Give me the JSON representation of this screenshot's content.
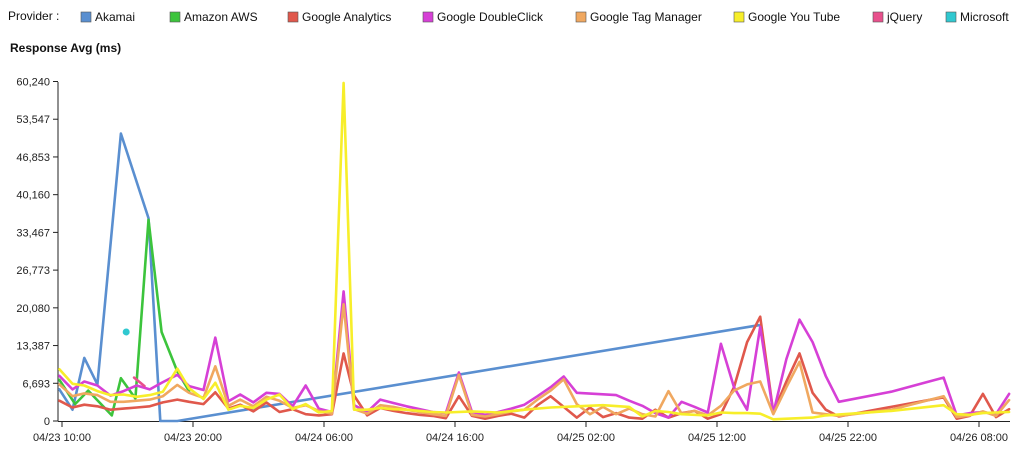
{
  "legend": {
    "prefix": "Provider :"
  },
  "chart_data": {
    "type": "line",
    "title": "",
    "xlabel": "",
    "ylabel": "Response Avg (ms)",
    "ylim": [
      0,
      62000
    ],
    "y_ticks": [
      0,
      6693,
      13387,
      20080,
      26773,
      33467,
      40160,
      46853,
      53547,
      60240
    ],
    "y_tick_labels": [
      "0",
      "6,693",
      "13,387",
      "20,080",
      "26,773",
      "33,467",
      "40,160",
      "46,853",
      "53,547",
      "60,240"
    ],
    "x_unit": "hours since 04/23 10:00",
    "xlim": [
      0,
      74.5
    ],
    "x_ticks": [
      0,
      10,
      20,
      30,
      40,
      50,
      60,
      70
    ],
    "x_tick_labels": [
      "04/23 10:00",
      "04/23 20:00",
      "04/24 06:00",
      "04/24 16:00",
      "04/25 02:00",
      "04/25 12:00",
      "04/25 22:00",
      "04/26 08:00"
    ],
    "grid": false,
    "legend_position": "top",
    "series": [
      {
        "name": "Akamai",
        "color": "#5a8fd0",
        "points": [
          [
            -0.2,
            5600
          ],
          [
            0.8,
            2000
          ],
          [
            1.7,
            11200
          ],
          [
            2.7,
            6500
          ],
          [
            4.5,
            51000
          ],
          [
            6.6,
            36000
          ],
          [
            7.5,
            0
          ],
          [
            8.8,
            0
          ],
          [
            53.2,
            17000
          ]
        ]
      },
      {
        "name": "Amazon AWS",
        "color": "#3cc43c",
        "points": [
          [
            -0.2,
            7300
          ],
          [
            1.0,
            3000
          ],
          [
            2.0,
            5400
          ],
          [
            3.8,
            1000
          ],
          [
            4.5,
            7600
          ],
          [
            5.6,
            4000
          ],
          [
            6.6,
            35700
          ],
          [
            7.6,
            15800
          ],
          [
            8.8,
            8800
          ],
          [
            9.7,
            5300
          ]
        ]
      },
      {
        "name": "Google Analytics",
        "color": "#e0584c",
        "points": [
          [
            -0.2,
            3600
          ],
          [
            0.8,
            2400
          ],
          [
            1.7,
            2900
          ],
          [
            2.7,
            2600
          ],
          [
            3.7,
            2000
          ],
          [
            4.7,
            2200
          ],
          [
            5.7,
            2400
          ],
          [
            6.7,
            2600
          ],
          [
            7.7,
            3300
          ],
          [
            8.8,
            3800
          ],
          [
            9.7,
            3400
          ],
          [
            10.8,
            3000
          ],
          [
            11.7,
            5100
          ],
          [
            12.7,
            2200
          ],
          [
            13.6,
            2900
          ],
          [
            14.6,
            1700
          ],
          [
            15.6,
            3300
          ],
          [
            16.6,
            1600
          ],
          [
            17.6,
            2100
          ],
          [
            18.6,
            1200
          ],
          [
            19.6,
            1000
          ],
          [
            20.6,
            1200
          ],
          [
            21.5,
            12000
          ],
          [
            22.3,
            4500
          ],
          [
            23.3,
            1000
          ],
          [
            24.3,
            2300
          ],
          [
            25.3,
            1800
          ],
          [
            26.3,
            1400
          ],
          [
            27.3,
            1100
          ],
          [
            28.3,
            900
          ],
          [
            29.3,
            500
          ],
          [
            30.3,
            4400
          ],
          [
            31.3,
            900
          ],
          [
            32.3,
            400
          ],
          [
            33.3,
            900
          ],
          [
            34.3,
            1300
          ],
          [
            35.3,
            600
          ],
          [
            36.3,
            2800
          ],
          [
            37.3,
            4400
          ],
          [
            38.3,
            2500
          ],
          [
            39.3,
            600
          ],
          [
            40.3,
            2400
          ],
          [
            41.3,
            700
          ],
          [
            42.3,
            1400
          ],
          [
            43.3,
            600
          ],
          [
            44.3,
            400
          ],
          [
            45.3,
            2000
          ],
          [
            46.3,
            600
          ],
          [
            47.3,
            1400
          ],
          [
            48.3,
            1800
          ],
          [
            49.3,
            400
          ],
          [
            50.3,
            1200
          ],
          [
            51.3,
            6000
          ],
          [
            52.3,
            14000
          ],
          [
            53.3,
            18500
          ],
          [
            54.3,
            1500
          ],
          [
            55.3,
            7000
          ],
          [
            56.3,
            12000
          ],
          [
            57.3,
            5000
          ],
          [
            58.3,
            2000
          ],
          [
            59.3,
            800
          ],
          [
            63.3,
            2500
          ],
          [
            67.3,
            4200
          ],
          [
            68.3,
            400
          ],
          [
            69.3,
            900
          ],
          [
            70.3,
            4800
          ],
          [
            71.3,
            700
          ],
          [
            72.3,
            2100
          ]
        ]
      },
      {
        "name": "Google DoubleClick",
        "color": "#d640d6",
        "points": [
          [
            -0.2,
            8000
          ],
          [
            0.8,
            5600
          ],
          [
            1.7,
            7000
          ],
          [
            2.7,
            6300
          ],
          [
            3.7,
            4500
          ],
          [
            4.7,
            5300
          ],
          [
            5.7,
            6300
          ],
          [
            6.7,
            5600
          ],
          [
            7.7,
            6900
          ],
          [
            8.8,
            8200
          ],
          [
            9.7,
            6200
          ],
          [
            10.8,
            5500
          ],
          [
            11.7,
            14800
          ],
          [
            12.7,
            3500
          ],
          [
            13.6,
            4700
          ],
          [
            14.6,
            3300
          ],
          [
            15.6,
            5000
          ],
          [
            16.6,
            4800
          ],
          [
            17.6,
            2600
          ],
          [
            18.6,
            6300
          ],
          [
            19.6,
            2200
          ],
          [
            20.6,
            1600
          ],
          [
            21.5,
            23000
          ],
          [
            22.3,
            2800
          ],
          [
            23.3,
            1600
          ],
          [
            24.3,
            3800
          ],
          [
            25.3,
            3200
          ],
          [
            26.3,
            2600
          ],
          [
            27.3,
            2100
          ],
          [
            28.3,
            1600
          ],
          [
            29.3,
            1400
          ],
          [
            30.3,
            8600
          ],
          [
            31.3,
            1600
          ],
          [
            32.3,
            1100
          ],
          [
            33.3,
            1600
          ],
          [
            34.3,
            2200
          ],
          [
            35.3,
            2900
          ],
          [
            36.3,
            4400
          ],
          [
            37.3,
            6000
          ],
          [
            38.3,
            7900
          ],
          [
            39.3,
            5000
          ],
          [
            42.3,
            4600
          ],
          [
            43.3,
            3600
          ],
          [
            44.3,
            2700
          ],
          [
            45.3,
            1400
          ],
          [
            46.3,
            600
          ],
          [
            47.3,
            3400
          ],
          [
            48.3,
            2500
          ],
          [
            49.3,
            1500
          ],
          [
            50.3,
            13700
          ],
          [
            51.3,
            6000
          ],
          [
            52.3,
            2000
          ],
          [
            53.3,
            16700
          ],
          [
            54.3,
            1400
          ],
          [
            55.3,
            11000
          ],
          [
            56.3,
            18000
          ],
          [
            57.3,
            14000
          ],
          [
            58.3,
            8000
          ],
          [
            59.3,
            3400
          ],
          [
            63.3,
            5200
          ],
          [
            67.3,
            7700
          ],
          [
            68.3,
            1000
          ],
          [
            69.3,
            1400
          ],
          [
            70.3,
            1600
          ],
          [
            71.3,
            1200
          ],
          [
            72.3,
            4800
          ]
        ]
      },
      {
        "name": "Google Tag Manager",
        "color": "#f0a860",
        "points": [
          [
            -0.2,
            6500
          ],
          [
            0.8,
            4400
          ],
          [
            1.7,
            4900
          ],
          [
            2.7,
            4600
          ],
          [
            3.7,
            3400
          ],
          [
            4.7,
            3400
          ],
          [
            5.7,
            3600
          ],
          [
            6.7,
            3800
          ],
          [
            7.7,
            4400
          ],
          [
            8.8,
            6400
          ],
          [
            9.7,
            5000
          ],
          [
            10.8,
            4100
          ],
          [
            11.7,
            9700
          ],
          [
            12.7,
            2700
          ],
          [
            13.6,
            3800
          ],
          [
            14.6,
            2600
          ],
          [
            15.6,
            4300
          ],
          [
            16.6,
            3600
          ],
          [
            17.6,
            2300
          ],
          [
            18.6,
            2800
          ],
          [
            19.6,
            1800
          ],
          [
            20.6,
            1300
          ],
          [
            21.5,
            20700
          ],
          [
            22.3,
            2100
          ],
          [
            23.3,
            1300
          ],
          [
            24.3,
            2800
          ],
          [
            25.3,
            2500
          ],
          [
            26.3,
            2000
          ],
          [
            27.3,
            1600
          ],
          [
            28.3,
            1200
          ],
          [
            29.3,
            900
          ],
          [
            30.3,
            8200
          ],
          [
            31.3,
            1100
          ],
          [
            32.3,
            800
          ],
          [
            33.3,
            1200
          ],
          [
            34.3,
            1700
          ],
          [
            35.3,
            2000
          ],
          [
            36.3,
            3800
          ],
          [
            37.3,
            5400
          ],
          [
            38.3,
            7400
          ],
          [
            39.3,
            3000
          ],
          [
            40.3,
            1200
          ],
          [
            41.3,
            2500
          ],
          [
            42.3,
            1200
          ],
          [
            43.3,
            2200
          ],
          [
            44.3,
            1200
          ],
          [
            45.3,
            800
          ],
          [
            46.3,
            5300
          ],
          [
            47.3,
            1300
          ],
          [
            48.3,
            1800
          ],
          [
            49.3,
            1000
          ],
          [
            50.3,
            2700
          ],
          [
            51.3,
            5400
          ],
          [
            52.3,
            6500
          ],
          [
            53.3,
            7000
          ],
          [
            54.3,
            1200
          ],
          [
            55.3,
            6000
          ],
          [
            56.3,
            10500
          ],
          [
            57.3,
            1500
          ],
          [
            58.3,
            1200
          ],
          [
            59.3,
            900
          ],
          [
            63.3,
            2000
          ],
          [
            67.3,
            4400
          ],
          [
            68.3,
            700
          ],
          [
            69.3,
            1000
          ],
          [
            70.3,
            1700
          ],
          [
            71.3,
            900
          ],
          [
            72.3,
            3700
          ]
        ]
      },
      {
        "name": "Google You Tube",
        "color": "#f7ee2a",
        "points": [
          [
            -0.2,
            9200
          ],
          [
            0.8,
            6600
          ],
          [
            1.7,
            6300
          ],
          [
            2.7,
            5300
          ],
          [
            3.7,
            4600
          ],
          [
            4.7,
            4700
          ],
          [
            5.7,
            4300
          ],
          [
            6.7,
            4600
          ],
          [
            7.7,
            5200
          ],
          [
            8.8,
            9300
          ],
          [
            9.7,
            5800
          ],
          [
            10.8,
            3900
          ],
          [
            11.7,
            6800
          ],
          [
            12.7,
            2000
          ],
          [
            13.6,
            2700
          ],
          [
            14.6,
            2300
          ],
          [
            15.6,
            3800
          ],
          [
            16.6,
            4700
          ],
          [
            17.6,
            2100
          ],
          [
            18.6,
            3000
          ],
          [
            19.6,
            1500
          ],
          [
            20.6,
            1800
          ],
          [
            21.5,
            60000
          ],
          [
            22.3,
            2000
          ],
          [
            23.3,
            2000
          ],
          [
            24.3,
            2300
          ],
          [
            25.3,
            2100
          ],
          [
            26.3,
            2000
          ],
          [
            27.3,
            1800
          ],
          [
            28.3,
            1600
          ],
          [
            29.3,
            1500
          ],
          [
            31.3,
            1700
          ],
          [
            33.3,
            1500
          ],
          [
            35.3,
            2000
          ],
          [
            37.3,
            2400
          ],
          [
            39.3,
            2600
          ],
          [
            41.3,
            2800
          ],
          [
            43.3,
            2500
          ],
          [
            44.3,
            800
          ],
          [
            45.3,
            1800
          ],
          [
            46.3,
            1600
          ],
          [
            47.3,
            1200
          ],
          [
            48.3,
            1100
          ],
          [
            49.3,
            1000
          ],
          [
            50.3,
            1500
          ],
          [
            51.3,
            1400
          ],
          [
            52.3,
            1400
          ],
          [
            53.3,
            1300
          ],
          [
            54.3,
            300
          ],
          [
            57.3,
            600
          ],
          [
            58.3,
            1000
          ],
          [
            63.3,
            1800
          ],
          [
            67.3,
            2800
          ],
          [
            68.3,
            1200
          ],
          [
            69.3,
            1100
          ],
          [
            70.3,
            1400
          ],
          [
            71.3,
            1500
          ],
          [
            72.3,
            1600
          ]
        ]
      },
      {
        "name": "jQuery",
        "color": "#e8508c",
        "points": [
          [
            5.5,
            7700
          ],
          [
            6.3,
            6200
          ]
        ]
      },
      {
        "name": "Microsoft",
        "color": "#30c8d0",
        "points": [
          [
            4.9,
            15800
          ]
        ]
      }
    ]
  }
}
